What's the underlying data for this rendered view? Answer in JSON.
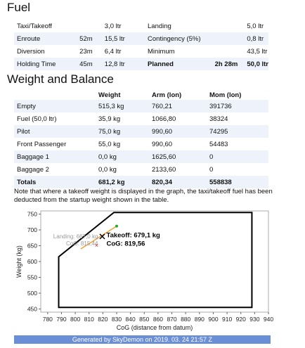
{
  "fuel": {
    "title": "Fuel",
    "rows": [
      {
        "l1": "Taxi/Takeoff",
        "t1": "",
        "v1": "3,0 ltr",
        "l2": "Landing",
        "t2": "",
        "v2": "5,0 ltr"
      },
      {
        "l1": "Enroute",
        "t1": "52m",
        "v1": "15,5 ltr",
        "l2": "Contingency (5%)",
        "t2": "",
        "v2": "0,8 ltr"
      },
      {
        "l1": "Diversion",
        "t1": "23m",
        "v1": "6,4 ltr",
        "l2": "Minimum",
        "t2": "",
        "v2": "43,5 ltr"
      },
      {
        "l1": "Holding Time",
        "t1": "45m",
        "v1": "12,8 ltr",
        "l2": "Planned",
        "t2": "2h 28m",
        "v2": "50,0 ltr"
      }
    ]
  },
  "wb": {
    "title": "Weight and Balance",
    "headers": {
      "weight": "Weight",
      "arm": "Arm (lon)",
      "mom": "Mom (lon)"
    },
    "rows": [
      {
        "item": "Empty",
        "weight": "515,3 kg",
        "arm": "760,21",
        "mom": "391736"
      },
      {
        "item": "Fuel (50,0 ltr)",
        "weight": "35,9 kg",
        "arm": "1066,80",
        "mom": "38324"
      },
      {
        "item": "Pilot",
        "weight": "75,0 kg",
        "arm": "990,60",
        "mom": "74295"
      },
      {
        "item": "Front Passenger",
        "weight": "55,0 kg",
        "arm": "990,60",
        "mom": "54483"
      },
      {
        "item": "Baggage 1",
        "weight": "0,0 kg",
        "arm": "1625,60",
        "mom": "0"
      },
      {
        "item": "Baggage 2",
        "weight": "0,0 kg",
        "arm": "2133,60",
        "mom": "0"
      },
      {
        "item": "Totals",
        "weight": "681,2 kg",
        "arm": "820,34",
        "mom": "558838"
      }
    ]
  },
  "note": "Note that where a takeoff weight is displayed in the graph, the taxi/takeoff fuel has been deducted from the startup weight shown in the table.",
  "footer": "Generated by SkyDemon on 2019. 03. 24 21:57 Z",
  "chart_data": {
    "type": "scatter",
    "xlabel": "CoG (distance from datum)",
    "ylabel": "Weight (kg)",
    "xlim": [
      775,
      940
    ],
    "ylim": [
      440,
      760
    ],
    "xticks": [
      780,
      790,
      800,
      810,
      820,
      830,
      840,
      850,
      860,
      870,
      880,
      890,
      900,
      910,
      920,
      930,
      940
    ],
    "yticks": [
      450,
      500,
      550,
      600,
      650,
      700,
      750
    ],
    "envelope": [
      [
        788,
        455
      ],
      [
        788,
        615
      ],
      [
        828,
        755
      ],
      [
        928,
        755
      ],
      [
        928,
        455
      ]
    ],
    "takeoff": {
      "x": 819.56,
      "y": 679.1,
      "label1": "Takeoff: 679,1 kg",
      "label2": "CoG: 819,56"
    },
    "landing": {
      "x": 815.44,
      "y": 667.0,
      "label1": "Landing: 667,0 kg",
      "label2": "CoG: 815,44"
    },
    "fuel_line": [
      [
        804,
        640
      ],
      [
        830,
        712
      ]
    ],
    "colors": {
      "envelope": "#000000",
      "line": "#f0a030",
      "landing": "#e02020",
      "end": "#22aa22"
    }
  }
}
